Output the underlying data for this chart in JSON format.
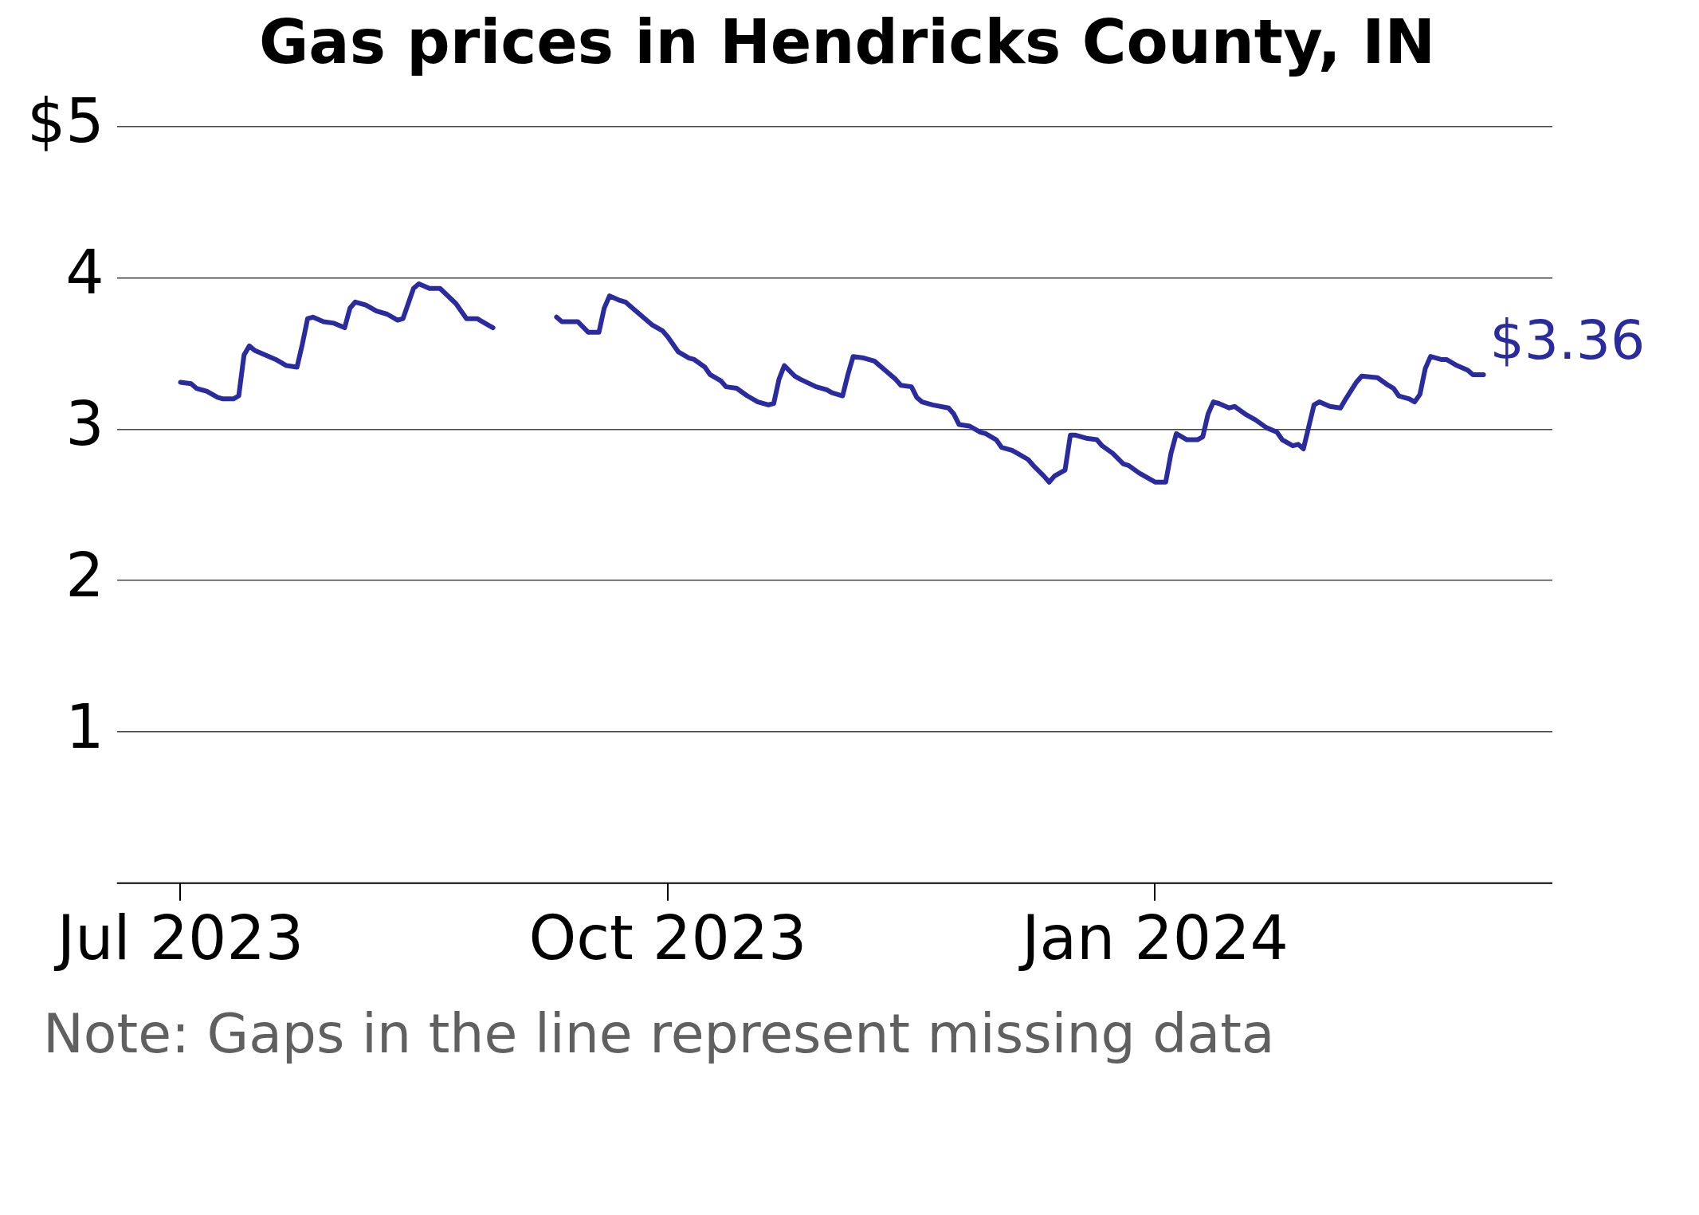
{
  "chart_data": {
    "type": "line",
    "title": "Gas prices in Hendricks County, IN",
    "annotations": [
      "Note: Gaps in the line represent missing data",
      {
        "text": "$3.36",
        "x": "2024-03-03",
        "y": 3.36
      }
    ],
    "series": [
      {
        "color": "#2b2ba0",
        "x": [
          "2023-07-01",
          "2023-07-03",
          "2023-07-04",
          "2023-07-06",
          "2023-07-08",
          "2023-07-09",
          "2023-07-11",
          "2023-07-12",
          "2023-07-13",
          "2023-07-14",
          "2023-07-15",
          "2023-07-17",
          "2023-07-19",
          "2023-07-21",
          "2023-07-23",
          "2023-07-24",
          "2023-07-25",
          "2023-07-26",
          "2023-07-28",
          "2023-07-30",
          "2023-08-01",
          "2023-08-02",
          "2023-08-03",
          "2023-08-05",
          "2023-08-07",
          "2023-08-09",
          "2023-08-11",
          "2023-08-12",
          "2023-08-14",
          "2023-08-15",
          "2023-08-17",
          "2023-08-19",
          "2023-08-22",
          "2023-08-24",
          "2023-08-26",
          "2023-08-28",
          "2023-08-29",
          "2023-09-04",
          "2023-09-10",
          "2023-09-11",
          "2023-09-14",
          "2023-09-16",
          "2023-09-18",
          "2023-09-19",
          "2023-09-20",
          "2023-09-22",
          "2023-09-23",
          "2023-09-25",
          "2023-09-28",
          "2023-09-30",
          "2023-10-01",
          "2023-10-03",
          "2023-10-05",
          "2023-10-06",
          "2023-10-08",
          "2023-10-09",
          "2023-10-11",
          "2023-10-12",
          "2023-10-14",
          "2023-10-16",
          "2023-10-18",
          "2023-10-20",
          "2023-10-21",
          "2023-10-22",
          "2023-10-23",
          "2023-10-25",
          "2023-10-26",
          "2023-10-29",
          "2023-10-31",
          "2023-11-01",
          "2023-11-03",
          "2023-11-04",
          "2023-11-05",
          "2023-11-07",
          "2023-11-09",
          "2023-11-11",
          "2023-11-13",
          "2023-11-14",
          "2023-11-16",
          "2023-11-17",
          "2023-11-18",
          "2023-11-20",
          "2023-11-23",
          "2023-11-24",
          "2023-11-25",
          "2023-11-27",
          "2023-11-29",
          "2023-11-30",
          "2023-12-02",
          "2023-12-03",
          "2023-12-05",
          "2023-12-06",
          "2023-12-08",
          "2023-12-09",
          "2023-12-11",
          "2023-12-12",
          "2023-12-13",
          "2023-12-15",
          "2023-12-16",
          "2023-12-17",
          "2023-12-19",
          "2023-12-21",
          "2023-12-22",
          "2023-12-24",
          "2023-12-26",
          "2023-12-27",
          "2023-12-29",
          "2024-01-01",
          "2024-01-03",
          "2024-01-04",
          "2024-01-05",
          "2024-01-07",
          "2024-01-09",
          "2024-01-10",
          "2024-01-11",
          "2024-01-12",
          "2024-01-13",
          "2024-01-15",
          "2024-01-16",
          "2024-01-18",
          "2024-01-20",
          "2024-01-22",
          "2024-01-24",
          "2024-01-25",
          "2024-01-27",
          "2024-01-28",
          "2024-01-29",
          "2024-01-31",
          "2024-02-01",
          "2024-02-03",
          "2024-02-05",
          "2024-02-06",
          "2024-02-08",
          "2024-02-09",
          "2024-02-12",
          "2024-02-14",
          "2024-02-15",
          "2024-02-16",
          "2024-02-18",
          "2024-02-19",
          "2024-02-20",
          "2024-02-21",
          "2024-02-22",
          "2024-02-24",
          "2024-02-25",
          "2024-02-27",
          "2024-02-29",
          "2024-03-01",
          "2024-03-03"
        ],
        "values": [
          3.31,
          3.3,
          3.27,
          3.25,
          3.21,
          3.2,
          3.2,
          3.22,
          3.49,
          3.55,
          3.52,
          3.49,
          3.46,
          3.42,
          3.41,
          3.56,
          3.73,
          3.74,
          3.71,
          3.7,
          3.67,
          3.8,
          3.84,
          3.82,
          3.78,
          3.76,
          3.72,
          3.73,
          3.93,
          3.96,
          3.93,
          3.93,
          3.83,
          3.73,
          3.73,
          3.69,
          3.67,
          null,
          3.74,
          3.71,
          3.71,
          3.64,
          3.64,
          3.8,
          3.88,
          3.85,
          3.84,
          3.78,
          3.69,
          3.65,
          3.61,
          3.51,
          3.47,
          3.46,
          3.41,
          3.36,
          3.32,
          3.28,
          3.27,
          3.22,
          3.18,
          3.16,
          3.17,
          3.33,
          3.42,
          3.35,
          3.33,
          3.28,
          3.26,
          3.24,
          3.22,
          3.36,
          3.48,
          3.47,
          3.45,
          3.39,
          3.33,
          3.29,
          3.28,
          3.21,
          3.18,
          3.16,
          3.14,
          3.1,
          3.03,
          3.02,
          2.98,
          2.97,
          2.93,
          2.88,
          2.86,
          2.84,
          2.8,
          2.76,
          2.69,
          2.65,
          2.69,
          2.73,
          2.96,
          2.96,
          2.94,
          2.93,
          2.89,
          2.84,
          2.77,
          2.76,
          2.71,
          2.65,
          2.65,
          2.84,
          2.97,
          2.93,
          2.93,
          2.95,
          3.1,
          3.18,
          3.17,
          3.14,
          3.15,
          3.1,
          3.06,
          3.01,
          2.98,
          2.93,
          2.89,
          2.9,
          2.87,
          3.16,
          3.18,
          3.15,
          3.14,
          3.2,
          3.31,
          3.35,
          3.34,
          3.29,
          3.27,
          3.22,
          3.2,
          3.18,
          3.23,
          3.4,
          3.48,
          3.46,
          3.46,
          3.42,
          3.39,
          3.36,
          3.36
        ]
      }
    ],
    "xlim": [
      "2023-06-19",
      "2024-03-16"
    ],
    "xticks": [
      {
        "value": "2023-07-01",
        "label": "Jul 2023"
      },
      {
        "value": "2023-10-01",
        "label": "Oct 2023"
      },
      {
        "value": "2024-01-01",
        "label": "Jan 2024"
      }
    ],
    "ylim": [
      0,
      5
    ],
    "yticks": [
      1,
      2,
      3,
      4,
      {
        "value": 5,
        "label": "$5"
      }
    ],
    "grid": "y",
    "legend": false,
    "marker": "none",
    "line_style": "solid"
  }
}
